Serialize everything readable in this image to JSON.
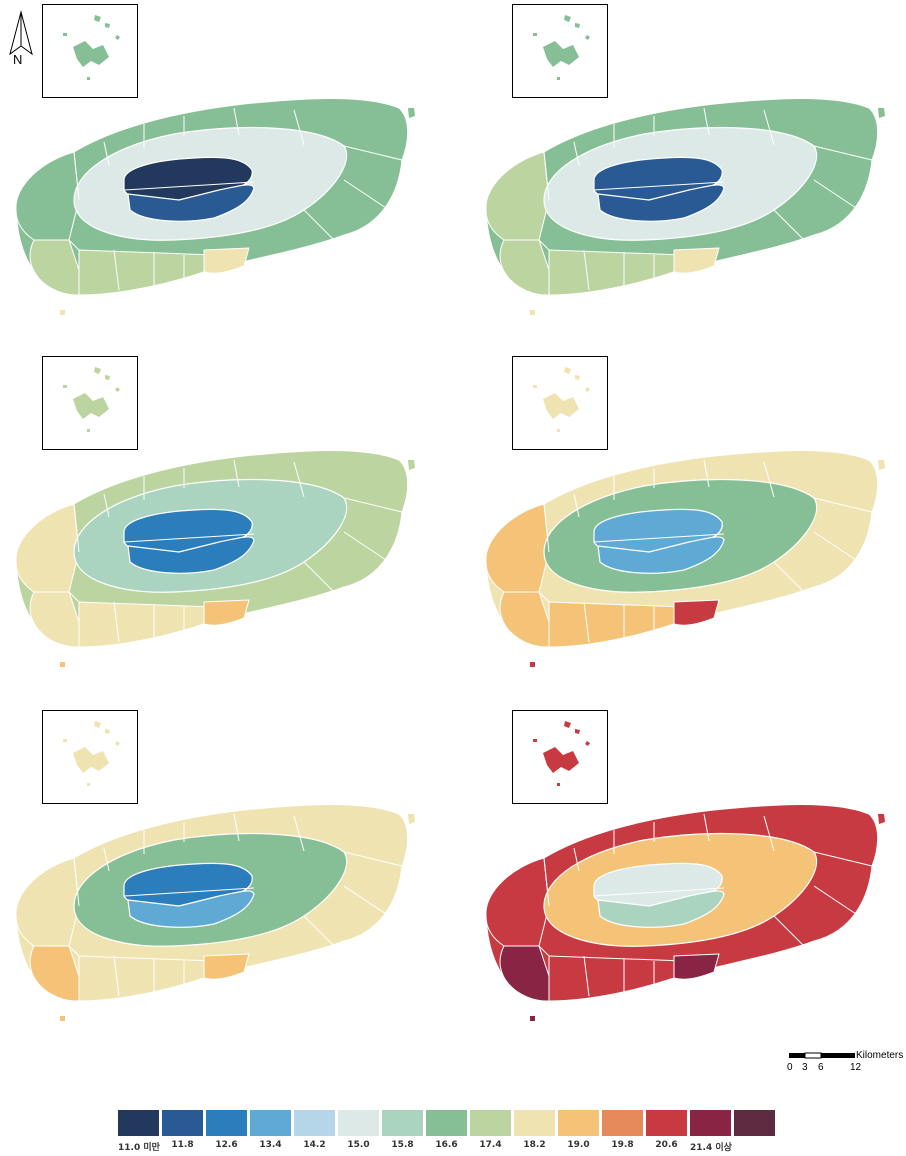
{
  "north_arrow": {
    "label": "N"
  },
  "scale_bar": {
    "unit_label": "Kilometers",
    "ticks": [
      "0",
      "3",
      "6",
      "12"
    ]
  },
  "legend": {
    "classes": [
      {
        "label": "11.0 미만",
        "color": "#23385d"
      },
      {
        "label": "11.8",
        "color": "#2a5a93"
      },
      {
        "label": "12.6",
        "color": "#2c7dbb"
      },
      {
        "label": "13.4",
        "color": "#5faad4"
      },
      {
        "label": "14.2",
        "color": "#b4d6e8"
      },
      {
        "label": "15.0",
        "color": "#dce9e6"
      },
      {
        "label": "15.8",
        "color": "#aad3c0"
      },
      {
        "label": "16.6",
        "color": "#86bf95"
      },
      {
        "label": "17.4",
        "color": "#bcd4a0"
      },
      {
        "label": "18.2",
        "color": "#f0e3b2"
      },
      {
        "label": "19.0",
        "color": "#f4c378"
      },
      {
        "label": "19.8",
        "color": "#e6895a"
      },
      {
        "label": "20.6",
        "color": "#c83a42"
      },
      {
        "label": "21.4 이상",
        "color": "#8a2444"
      },
      {
        "label": "",
        "color": "#5e2a40"
      }
    ]
  },
  "maps": [
    {
      "coast": "#86bf95",
      "west": "#86bf95",
      "southwest": "#bcd4a0",
      "south": "#bcd4a0",
      "southcoast": "#f0e3b2",
      "ring": "#dce9e6",
      "core_north": "#23385d",
      "core_south": "#2a5a93",
      "inset": "#86bf95"
    },
    {
      "coast": "#86bf95",
      "west": "#bcd4a0",
      "southwest": "#bcd4a0",
      "south": "#bcd4a0",
      "southcoast": "#f0e3b2",
      "ring": "#dce9e6",
      "core_north": "#2a5a93",
      "core_south": "#2a5a93",
      "inset": "#86bf95"
    },
    {
      "coast": "#bcd4a0",
      "west": "#f0e3b2",
      "southwest": "#f0e3b2",
      "south": "#f0e3b2",
      "southcoast": "#f4c378",
      "ring": "#aad3c0",
      "core_north": "#2c7dbb",
      "core_south": "#2c7dbb",
      "inset": "#bcd4a0"
    },
    {
      "coast": "#f0e3b2",
      "west": "#f4c378",
      "southwest": "#f4c378",
      "south": "#f4c378",
      "southcoast": "#c83a42",
      "ring": "#86bf95",
      "core_north": "#5faad4",
      "core_south": "#5faad4",
      "inset": "#f0e3b2"
    },
    {
      "coast": "#f0e3b2",
      "west": "#f0e3b2",
      "southwest": "#f4c378",
      "south": "#f0e3b2",
      "southcoast": "#f4c378",
      "ring": "#86bf95",
      "core_north": "#2c7dbb",
      "core_south": "#5faad4",
      "inset": "#f0e3b2"
    },
    {
      "coast": "#c83a42",
      "west": "#c83a42",
      "southwest": "#8a2444",
      "south": "#c83a42",
      "southcoast": "#8a2444",
      "ring": "#f4c378",
      "core_north": "#dce9e6",
      "core_south": "#aad3c0",
      "inset": "#c83a42"
    }
  ]
}
